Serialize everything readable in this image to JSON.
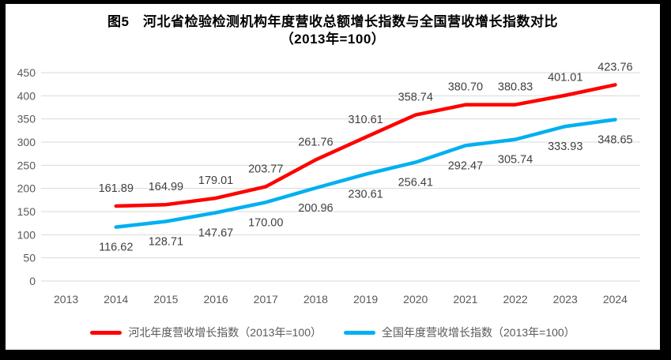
{
  "title": {
    "line1": "图5　河北省检验检测机构年度营收总额增长指数与全国营收增长指数对比",
    "line2": "（2013年=100）"
  },
  "chart_data": {
    "type": "line",
    "title": "图5 河北省检验检测机构年度营收总额增长指数与全国营收增长指数对比（2013年=100）",
    "categories": [
      "2013",
      "2014",
      "2015",
      "2016",
      "2017",
      "2018",
      "2019",
      "2020",
      "2021",
      "2022",
      "2023",
      "2024"
    ],
    "xlabel": "",
    "ylabel": "",
    "ylim": [
      0,
      450
    ],
    "y_ticks": [
      0,
      50,
      100,
      150,
      200,
      250,
      300,
      350,
      400,
      450
    ],
    "grid": true,
    "legend_position": "bottom",
    "data_label_decimals": 2,
    "colors": {
      "gridline": "#D9D9D9",
      "tick_label": "#595959",
      "data_label": "#404040"
    },
    "series": [
      {
        "name": "河北年度营收增长指数（2013年=100）",
        "color": "#FF0000",
        "label_position": "above",
        "x": [
          "2014",
          "2015",
          "2016",
          "2017",
          "2018",
          "2019",
          "2020",
          "2021",
          "2022",
          "2023",
          "2024"
        ],
        "values": [
          161.89,
          164.99,
          179.01,
          203.77,
          261.76,
          310.61,
          358.74,
          380.7,
          380.83,
          401.01,
          423.76
        ]
      },
      {
        "name": "全国年度营收增长指数（2013年=100）",
        "color": "#00B0F0",
        "label_position": "below",
        "x": [
          "2014",
          "2015",
          "2016",
          "2017",
          "2018",
          "2019",
          "2020",
          "2021",
          "2022",
          "2023",
          "2024"
        ],
        "values": [
          116.62,
          128.71,
          147.67,
          170.0,
          200.96,
          230.61,
          256.41,
          292.47,
          305.74,
          333.93,
          348.65
        ]
      }
    ]
  }
}
